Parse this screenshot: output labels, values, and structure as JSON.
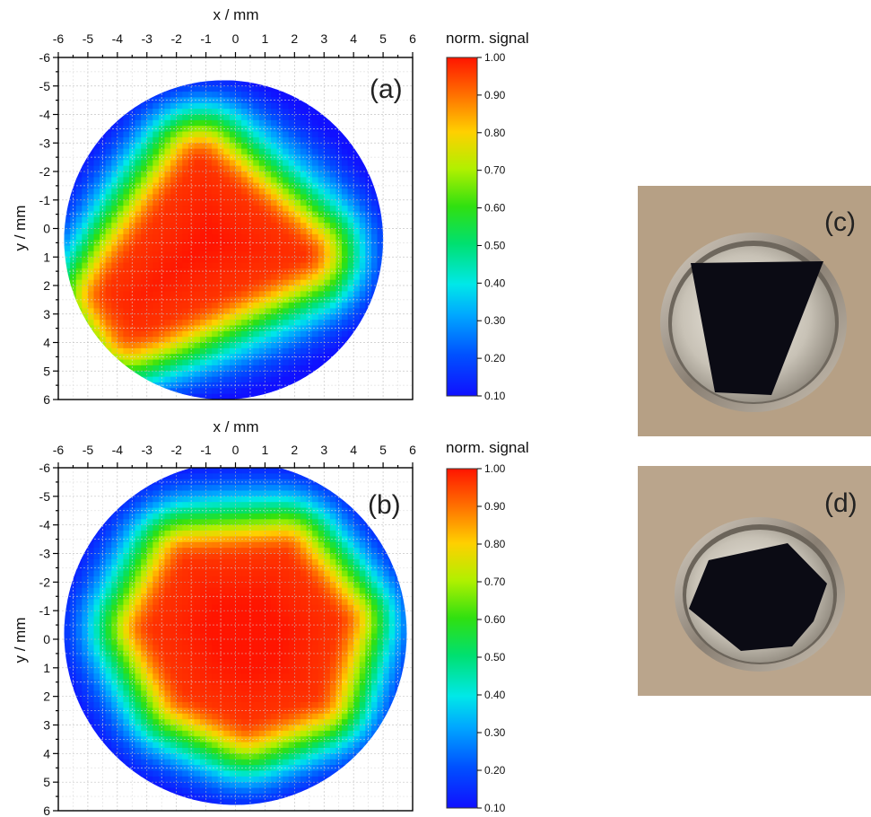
{
  "chart_data": [
    {
      "type": "heatmap",
      "panel_label": "(a)",
      "xlabel": "x / mm",
      "ylabel": "y / mm",
      "xlim": [
        -6,
        6
      ],
      "ylim": [
        -6,
        6
      ],
      "y_inverted": true,
      "x_ticks": [
        "-6",
        "-5",
        "-4",
        "-3",
        "-2",
        "-1",
        "0",
        "1",
        "2",
        "3",
        "4",
        "5",
        "6"
      ],
      "y_ticks": [
        "-6",
        "-5",
        "-4",
        "-3",
        "-2",
        "-1",
        "0",
        "1",
        "2",
        "3",
        "4",
        "5",
        "6"
      ],
      "grid": true,
      "colorbar": {
        "label": "norm. signal",
        "min": 0.1,
        "max": 1.0,
        "ticks": [
          "1.00",
          "0.90",
          "0.80",
          "0.70",
          "0.60",
          "0.50",
          "0.40",
          "0.30",
          "0.20",
          "0.10"
        ],
        "colormap": "rainbow"
      },
      "sample_shape": {
        "description_region": "trapezoid",
        "high_signal_vertices_mm": [
          [
            -1.2,
            -2.2
          ],
          [
            2.2,
            0.9
          ],
          [
            -3.6,
            3.6
          ],
          [
            -4.3,
            2.4
          ]
        ]
      },
      "disk": {
        "center_mm": [
          -0.4,
          0.4
        ],
        "radius_mm": 5.4,
        "base_value": 0.13
      }
    },
    {
      "type": "heatmap",
      "panel_label": "(b)",
      "xlabel": "x / mm",
      "ylabel": "y / mm",
      "xlim": [
        -6,
        6
      ],
      "ylim": [
        -6,
        6
      ],
      "y_inverted": true,
      "x_ticks": [
        "-6",
        "-5",
        "-4",
        "-3",
        "-2",
        "-1",
        "0",
        "1",
        "2",
        "3",
        "4",
        "5",
        "6"
      ],
      "y_ticks": [
        "-6",
        "-5",
        "-4",
        "-3",
        "-2",
        "-1",
        "0",
        "1",
        "2",
        "3",
        "4",
        "5",
        "6"
      ],
      "grid": true,
      "colorbar": {
        "label": "norm. signal",
        "min": 0.1,
        "max": 1.0,
        "ticks": [
          "1.00",
          "0.90",
          "0.80",
          "0.70",
          "0.60",
          "0.50",
          "0.40",
          "0.30",
          "0.20",
          "0.10"
        ],
        "colormap": "rainbow"
      },
      "sample_shape": {
        "description_region": "hexagon",
        "high_signal_vertices_mm": [
          [
            -1.6,
            -2.6
          ],
          [
            1.6,
            -2.8
          ],
          [
            3.3,
            -0.6
          ],
          [
            2.6,
            1.9
          ],
          [
            0.4,
            2.7
          ],
          [
            -1.6,
            1.8
          ],
          [
            -2.2,
            0.6
          ],
          [
            -2.7,
            -0.4
          ]
        ]
      },
      "disk": {
        "center_mm": [
          0.0,
          -0.2
        ],
        "radius_mm": 5.8,
        "base_value": 0.14
      }
    }
  ],
  "photos": [
    {
      "label": "(c)",
      "sample": "trapezoid sample in metal cup",
      "background": "#b09a80"
    },
    {
      "label": "(d)",
      "sample": "hexagonal sample in metal cup",
      "background": "#b6a088"
    }
  ]
}
